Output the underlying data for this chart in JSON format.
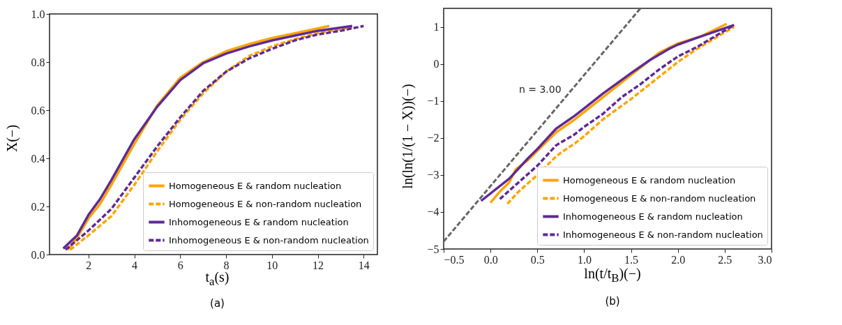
{
  "chart_data": [
    {
      "type": "line",
      "xlabel": "t$_{a}$(s)",
      "ylabel": "X(−)",
      "xlim": [
        0.3,
        14.6
      ],
      "ylim": [
        0,
        1
      ],
      "xticks": [
        2,
        4,
        6,
        8,
        10,
        12,
        14
      ],
      "yticks": [
        {
          "value": 0,
          "label": "0.0"
        },
        0.2,
        0.4,
        0.6,
        0.8,
        {
          "value": 1,
          "label": "1.0"
        }
      ],
      "grid": false,
      "legend": "bottom right",
      "annotations": [
        "(a)"
      ],
      "series": [
        {
          "name": "Homogeneous E & random nucleation",
          "color": "#ffa500",
          "line_style": "solid",
          "x": [
            1.1,
            1.5,
            2,
            2.5,
            3,
            4,
            5,
            6,
            7,
            8,
            9,
            10,
            11,
            12,
            12.5
          ],
          "values": [
            0.02,
            0.07,
            0.15,
            0.21,
            0.29,
            0.46,
            0.62,
            0.735,
            0.8,
            0.845,
            0.875,
            0.9,
            0.92,
            0.94,
            0.95
          ]
        },
        {
          "name": "Homogeneous E & non-random nucleation",
          "color": "#ffa500",
          "line_style": "dashed",
          "x": [
            1.2,
            2,
            3,
            4,
            5,
            6,
            7,
            8,
            9,
            10,
            11,
            12,
            13.5
          ],
          "values": [
            0.02,
            0.08,
            0.16,
            0.29,
            0.43,
            0.56,
            0.67,
            0.76,
            0.825,
            0.865,
            0.895,
            0.92,
            0.945
          ]
        },
        {
          "name": "Inhomogeneous E & random nucleation",
          "color": "#5e2a96",
          "line_style": "solid",
          "x": [
            0.9,
            1.5,
            2,
            2.5,
            3,
            4,
            5,
            6,
            7,
            8,
            9,
            10,
            11,
            12,
            13.5
          ],
          "values": [
            0.025,
            0.08,
            0.165,
            0.23,
            0.31,
            0.48,
            0.615,
            0.725,
            0.795,
            0.835,
            0.865,
            0.89,
            0.91,
            0.93,
            0.95
          ]
        },
        {
          "name": "Inhomogeneous E & non-random nucleation",
          "color": "#5e2a96",
          "line_style": "dashed",
          "x": [
            1,
            2,
            3,
            4,
            5,
            6,
            7,
            8,
            9,
            10,
            11,
            12,
            13,
            14
          ],
          "values": [
            0.02,
            0.1,
            0.19,
            0.32,
            0.45,
            0.57,
            0.68,
            0.76,
            0.815,
            0.855,
            0.89,
            0.915,
            0.93,
            0.95
          ]
        }
      ]
    },
    {
      "type": "line",
      "xlabel": "ln(t/t$_{B}$)(−)",
      "ylabel": "ln(ln(1/(1 − X))(−)",
      "xlim": [
        -0.5,
        3
      ],
      "ylim": [
        -5,
        1.5
      ],
      "xticks": [
        -0.5,
        {
          "value": 0,
          "label": "0.0"
        },
        0.5,
        {
          "value": 1,
          "label": "1.0"
        },
        1.5,
        {
          "value": 2,
          "label": "2.0"
        },
        2.5,
        {
          "value": 3,
          "label": "3.0"
        }
      ],
      "yticks": [
        -5,
        -4,
        -3,
        -2,
        -1,
        0,
        1
      ],
      "grid": false,
      "legend": "bottom right",
      "annotations": [
        {
          "text": "n = 3.00",
          "x": 0.86,
          "y": -0.71
        },
        "(b)"
      ],
      "series": [
        {
          "name": "Homogeneous E & random nucleation",
          "color": "#ffa500",
          "line_style": "solid",
          "x": [
            0,
            0.1,
            0.2,
            0.27,
            0.4,
            0.5,
            0.6,
            0.7,
            0.9,
            1,
            1.2,
            1.5,
            1.7,
            1.8,
            2,
            2.25,
            2.52
          ],
          "values": [
            -3.75,
            -3.45,
            -3.2,
            -2.85,
            -2.6,
            -2.35,
            -2.1,
            -1.85,
            -1.5,
            -1.3,
            -0.9,
            -0.3,
            0.1,
            0.3,
            0.55,
            0.75,
            1.08
          ]
        },
        {
          "name": "Homogeneous E & non-random nucleation",
          "color": "#ffa500",
          "line_style": "dashed",
          "x": [
            0.18,
            0.3,
            0.5,
            0.7,
            0.75,
            0.9,
            1,
            1.2,
            1.5,
            1.7,
            1.9,
            2,
            2.2,
            2.4,
            2.6
          ],
          "values": [
            -3.78,
            -3.45,
            -3,
            -2.5,
            -2.4,
            -2.15,
            -1.95,
            -1.5,
            -0.95,
            -0.55,
            -0.15,
            0.05,
            0.4,
            0.7,
            1
          ]
        },
        {
          "name": "Inhomogeneous E & random nucleation",
          "color": "#5e2a96",
          "line_style": "solid",
          "x": [
            -0.1,
            0.2,
            0.4,
            0.5,
            0.7,
            0.9,
            1,
            1.2,
            1.5,
            1.7,
            1.9,
            2,
            2.2,
            2.6
          ],
          "values": [
            -3.7,
            -3.1,
            -2.55,
            -2.3,
            -1.75,
            -1.4,
            -1.2,
            -0.8,
            -0.25,
            0.1,
            0.4,
            0.52,
            0.7,
            1.05
          ]
        },
        {
          "name": "Inhomogeneous E & non-random nucleation",
          "color": "#5e2a96",
          "line_style": "dashed",
          "x": [
            0.1,
            0.3,
            0.5,
            0.7,
            0.9,
            1,
            1.2,
            1.4,
            1.6,
            1.8,
            2,
            2.2,
            2.4,
            2.6
          ],
          "values": [
            -3.65,
            -3.2,
            -2.75,
            -2.2,
            -1.9,
            -1.7,
            -1.35,
            -0.9,
            -0.55,
            -0.15,
            0.2,
            0.45,
            0.75,
            1.05
          ]
        },
        {
          "type": "line",
          "color": "#666666",
          "line_style": "dashed",
          "x": [
            -0.5,
            1.6
          ],
          "values": [
            -4.8,
            1.5
          ]
        }
      ]
    }
  ]
}
